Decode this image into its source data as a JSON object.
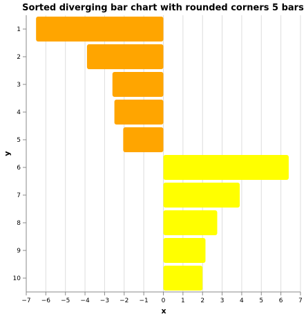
{
  "chart_data": {
    "type": "bar",
    "orientation": "horizontal",
    "title": "Sorted diverging bar chart with rounded corners 5 bars",
    "xlabel": "x",
    "ylabel": "y",
    "xlim": [
      -7,
      7
    ],
    "x_ticks": [
      "−7",
      "−6",
      "−5",
      "−4",
      "−3",
      "−2",
      "−1",
      "0",
      "1",
      "2",
      "3",
      "4",
      "5",
      "6",
      "7"
    ],
    "categories": [
      "1",
      "2",
      "3",
      "4",
      "5",
      "6",
      "7",
      "8",
      "9",
      "10"
    ],
    "values": [
      -6.5,
      -3.9,
      -2.6,
      -2.5,
      -2.05,
      6.4,
      3.9,
      2.75,
      2.15,
      2.0
    ],
    "grid": true,
    "colors": {
      "negative": "#ffa500",
      "positive": "#ffff00"
    }
  }
}
